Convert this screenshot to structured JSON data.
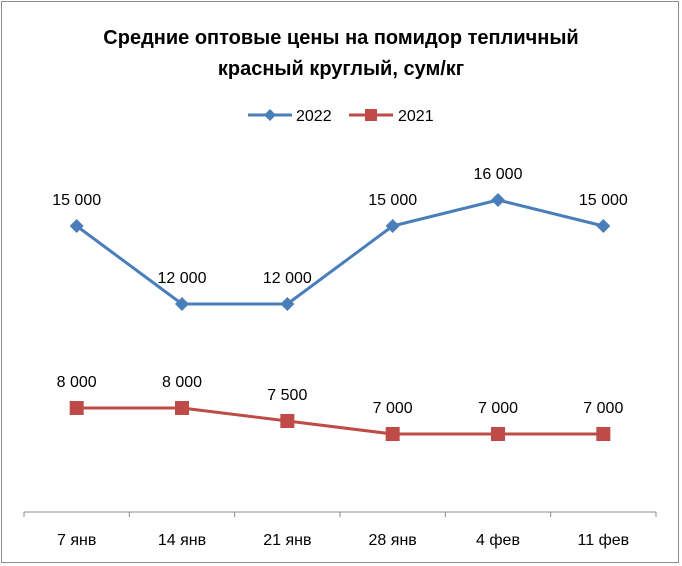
{
  "chart_data": {
    "type": "line",
    "title_lines": [
      "Средние оптовые цены на помидор тепличный",
      "красный круглый, сум/кг"
    ],
    "title": "Средние оптовые цены на помидор тепличный красный круглый, сум/кг",
    "xlabel": "",
    "ylabel": "",
    "categories": [
      "7 янв",
      "14 янв",
      "21 янв",
      "28 янв",
      "4 фев",
      "11 фев"
    ],
    "series": [
      {
        "name": "2022",
        "values": [
          15000,
          12000,
          12000,
          15000,
          16000,
          15000
        ],
        "labels": [
          "15 000",
          "12 000",
          "12 000",
          "15 000",
          "16 000",
          "15 000"
        ],
        "color": "#4a7ebb",
        "marker": "diamond"
      },
      {
        "name": "2021",
        "values": [
          8000,
          8000,
          7500,
          7000,
          7000,
          7000
        ],
        "labels": [
          "8 000",
          "8 000",
          "7 500",
          "7 000",
          "7 000",
          "7 000"
        ],
        "color": "#be4b48",
        "marker": "square"
      }
    ],
    "ylim": [
      4000,
      20000
    ],
    "grid": false,
    "legend_position": "top"
  }
}
